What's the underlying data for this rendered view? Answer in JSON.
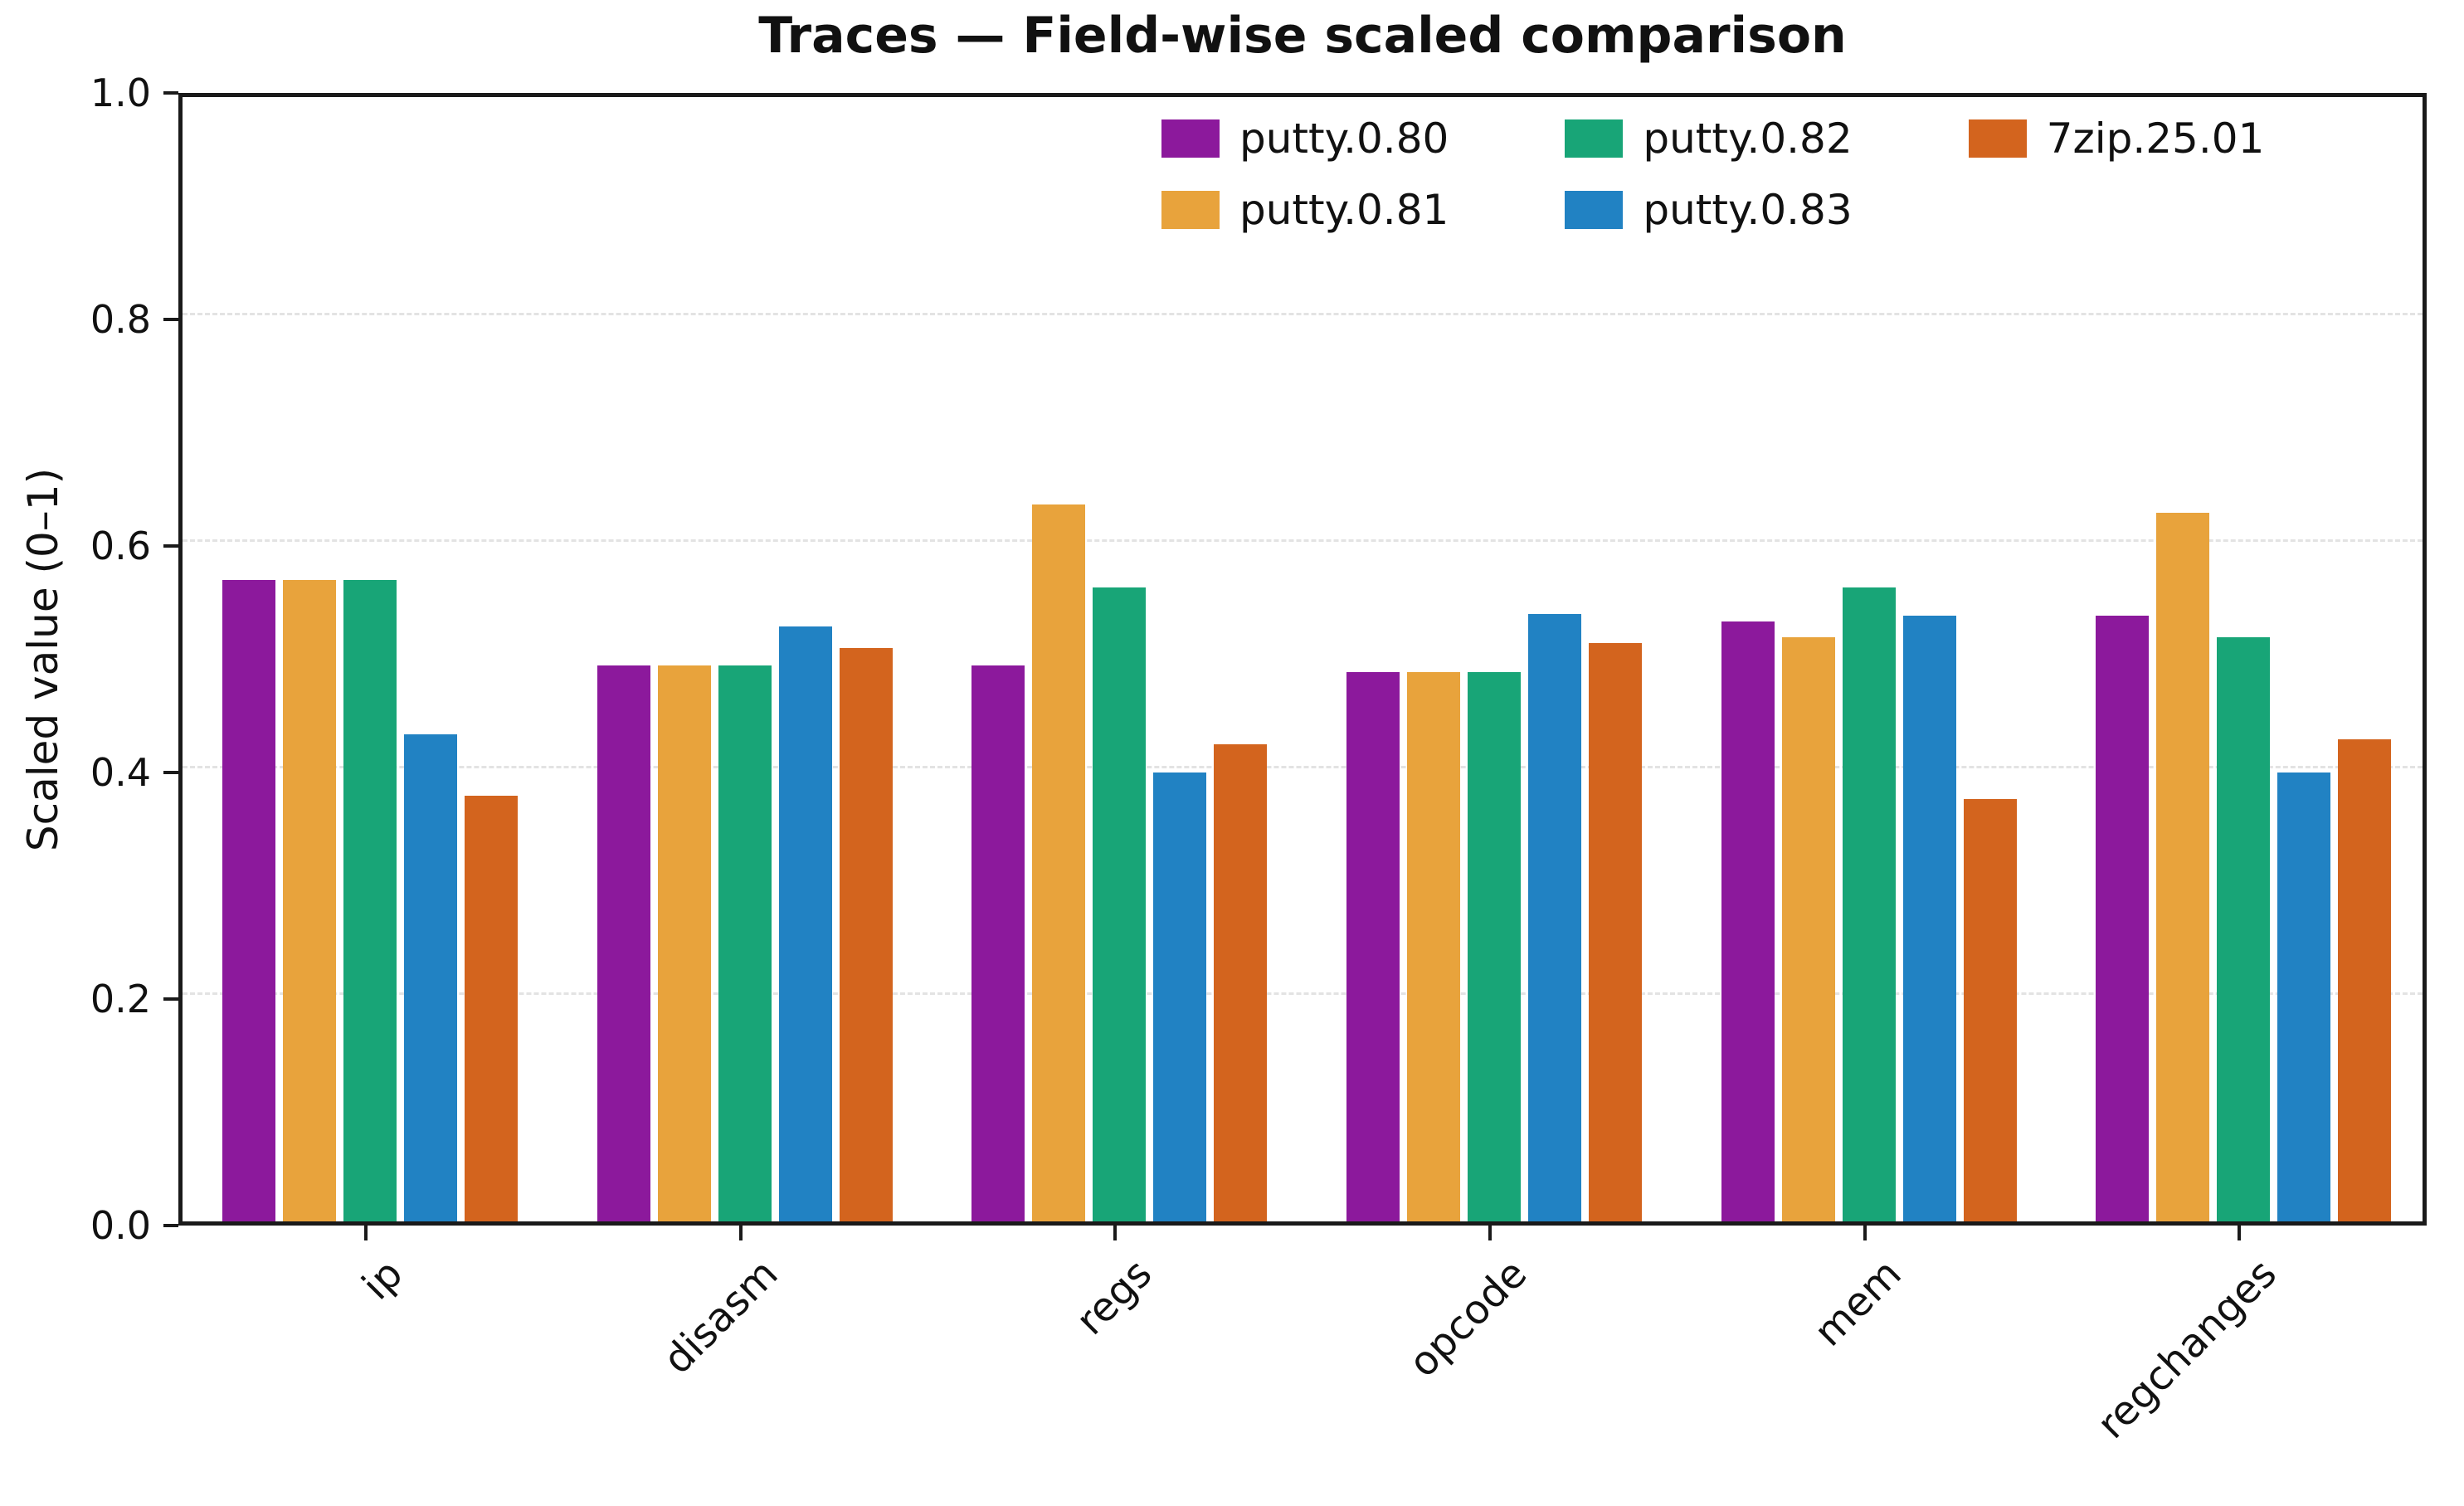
{
  "chart_data": {
    "type": "bar",
    "title": "Traces — Field-wise scaled comparison",
    "ylabel": "Scaled value (0–1)",
    "xlabel": "",
    "ylim": [
      0,
      1
    ],
    "yticks": [
      0.0,
      0.2,
      0.4,
      0.6,
      0.8,
      1.0
    ],
    "grid": "horizontal dashed gridlines at y ticks",
    "legend_position": "upper center inside plot, 3 columns, no frame",
    "categories": [
      "ip",
      "disasm",
      "regs",
      "opcode",
      "mem",
      "regchanges"
    ],
    "series": [
      {
        "name": "putty.0.80",
        "color": "#8c199c",
        "values": [
          0.566,
          0.491,
          0.491,
          0.485,
          0.53,
          0.535
        ]
      },
      {
        "name": "putty.0.81",
        "color": "#e8a33c",
        "values": [
          0.566,
          0.491,
          0.633,
          0.485,
          0.516,
          0.626
        ]
      },
      {
        "name": "putty.0.82",
        "color": "#18a577",
        "values": [
          0.566,
          0.491,
          0.56,
          0.485,
          0.56,
          0.516
        ]
      },
      {
        "name": "putty.0.83",
        "color": "#2182c3",
        "values": [
          0.43,
          0.525,
          0.396,
          0.536,
          0.535,
          0.396
        ]
      },
      {
        "name": "7zip.25.01",
        "color": "#d3641e",
        "values": [
          0.376,
          0.506,
          0.421,
          0.511,
          0.373,
          0.426
        ]
      }
    ]
  }
}
